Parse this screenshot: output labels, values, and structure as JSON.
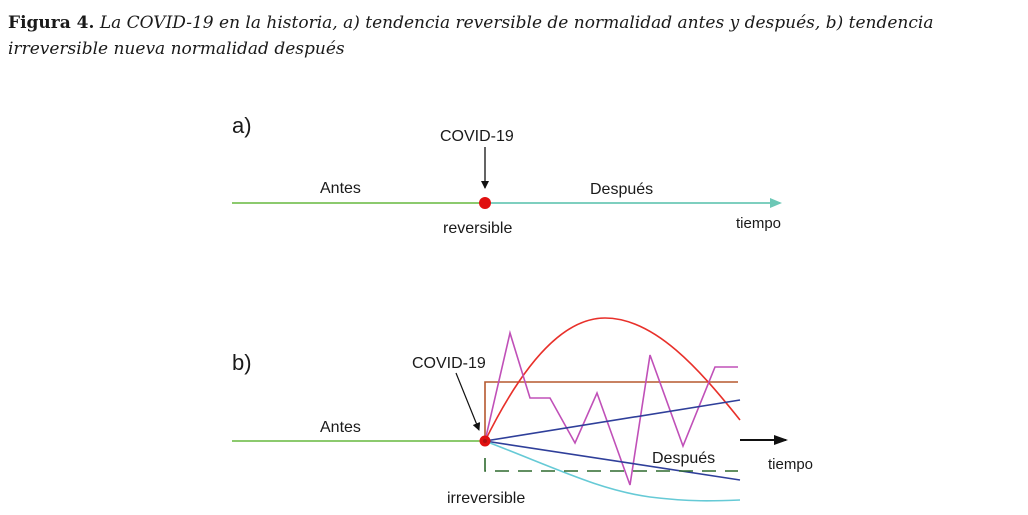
{
  "caption": {
    "lead": "Figura 4.",
    "text": "La COVID-19 en la historia, a) tendencia reversible de normalidad antes y después, b) tendencia irreversible nueva normalidad después"
  },
  "panel_a": {
    "tag": "a)",
    "event": "COVID-19",
    "before": "Antes",
    "after": "Después",
    "point": "reversible",
    "axis": "tiempo"
  },
  "panel_b": {
    "tag": "b)",
    "event": "COVID-19",
    "before": "Antes",
    "after": "Después",
    "point": "irreversible",
    "axis": "tiempo"
  },
  "colors": {
    "before_line": "#7cc35a",
    "after_line": "#6cc8b6",
    "point": "#e01010",
    "red_curve": "#e8302a",
    "brown_line": "#b5582f",
    "magenta_zigzag": "#c050b8",
    "blue_line": "#2f3f9a",
    "teal_curve": "#66cad6",
    "green_dashed": "#2f6a2f"
  }
}
